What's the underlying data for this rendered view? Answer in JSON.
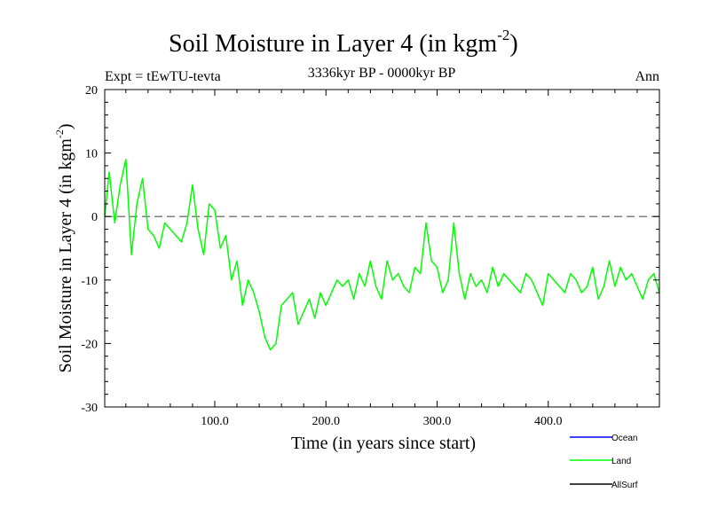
{
  "chart_data": {
    "type": "line",
    "title": "Soil Moisture in Layer 4 (in kgm",
    "title_sup": "-2",
    "title_close": ")",
    "subtitle": "3336kyr BP - 0000kyr BP",
    "left_label": "Expt = tEwTU-tevta",
    "right_label": "Ann",
    "xlabel": "Time (in years since start)",
    "ylabel": "Soil Moisture in Layer 4 (in kgm",
    "ylabel_sup": "-2",
    "ylabel_close": ")",
    "xlim": [
      1,
      500
    ],
    "ylim": [
      -30,
      20
    ],
    "x_ticks": [
      100,
      200,
      300,
      400
    ],
    "x_tick_labels": [
      "100.0",
      "200.0",
      "300.0",
      "400.0"
    ],
    "y_ticks": [
      -30,
      -20,
      -10,
      0,
      10,
      20
    ],
    "y_tick_labels": [
      "-30",
      "-20",
      "-10",
      "0",
      "10",
      "20"
    ],
    "zero_line": 0,
    "legend": [
      {
        "name": "Ocean",
        "color": "#0000ff"
      },
      {
        "name": "Land",
        "color": "#00ff00"
      },
      {
        "name": "AllSurf",
        "color": "#000000"
      }
    ],
    "series": [
      {
        "name": "Land",
        "color": "#00ff00",
        "x": [
          1,
          5,
          10,
          15,
          20,
          25,
          30,
          35,
          40,
          45,
          50,
          55,
          60,
          65,
          70,
          75,
          80,
          85,
          90,
          95,
          100,
          105,
          110,
          115,
          120,
          125,
          130,
          135,
          140,
          145,
          150,
          155,
          160,
          165,
          170,
          175,
          180,
          185,
          190,
          195,
          200,
          205,
          210,
          215,
          220,
          225,
          230,
          235,
          240,
          245,
          250,
          255,
          260,
          265,
          270,
          275,
          280,
          285,
          290,
          295,
          300,
          305,
          310,
          315,
          320,
          325,
          330,
          335,
          340,
          345,
          350,
          355,
          360,
          365,
          370,
          375,
          380,
          385,
          390,
          395,
          400,
          405,
          410,
          415,
          420,
          425,
          430,
          435,
          440,
          445,
          450,
          455,
          460,
          465,
          470,
          475,
          480,
          485,
          490,
          495,
          500
        ],
        "values": [
          0,
          7,
          -1,
          5,
          9,
          -6,
          2,
          6,
          -2,
          -3,
          -5,
          -1,
          -2,
          -3,
          -4,
          -1,
          5,
          -2,
          -6,
          2,
          1,
          -5,
          -3,
          -10,
          -7,
          -14,
          -10,
          -12,
          -15,
          -19,
          -21,
          -20,
          -14,
          -13,
          -12,
          -17,
          -15,
          -13,
          -16,
          -12,
          -14,
          -12,
          -10,
          -11,
          -10,
          -13,
          -9,
          -11,
          -7,
          -11,
          -13,
          -7,
          -10,
          -9,
          -11,
          -12,
          -8,
          -9,
          -1,
          -7,
          -8,
          -12,
          -10,
          -1,
          -9,
          -13,
          -9,
          -11,
          -10,
          -12,
          -8,
          -11,
          -9,
          -10,
          -11,
          -12,
          -9,
          -10,
          -12,
          -14,
          -9,
          -10,
          -11,
          -12,
          -9,
          -10,
          -12,
          -11,
          -8,
          -13,
          -11,
          -7,
          -11,
          -8,
          -10,
          -9,
          -11,
          -13,
          -10,
          -9,
          -12
        ]
      }
    ]
  }
}
